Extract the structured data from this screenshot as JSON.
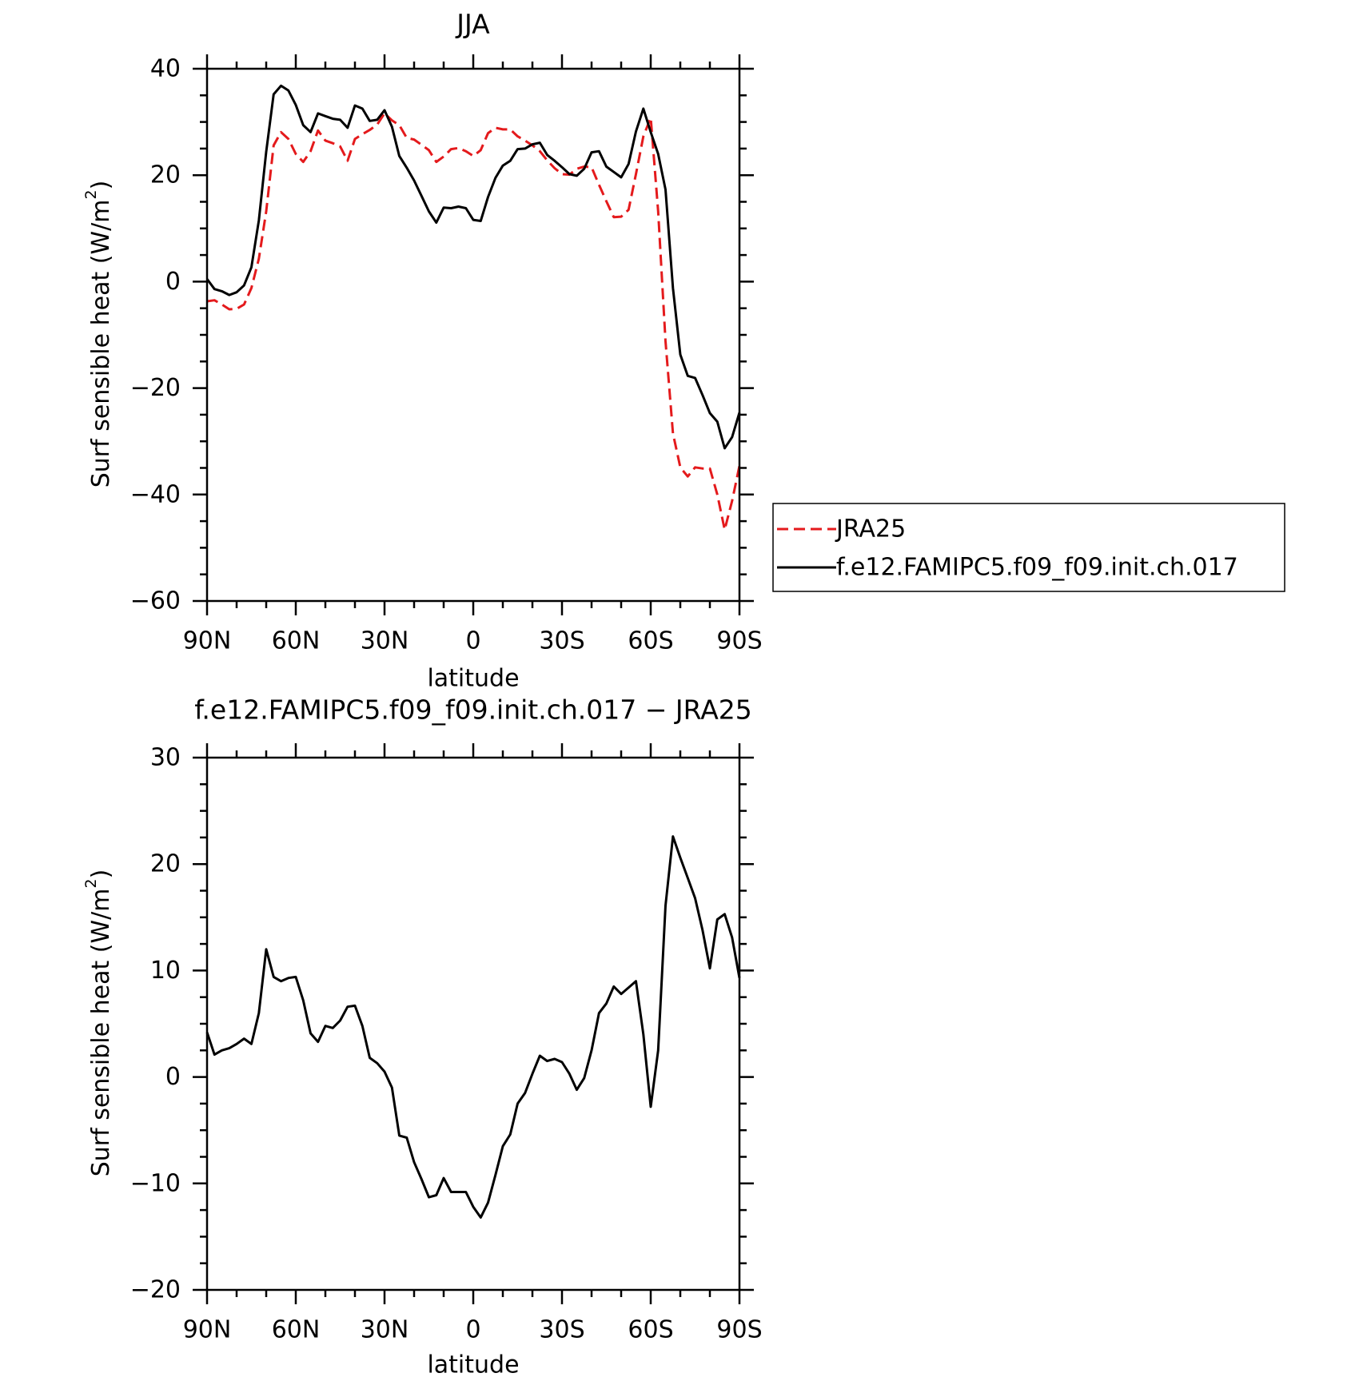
{
  "chart_data": [
    {
      "type": "line",
      "title": "JJA",
      "xlabel": "latitude",
      "ylabel": "Surf sensible heat (W/m",
      "ylabel_sup": "2",
      "ylabel_tail": ")",
      "xlim": [
        90,
        -90
      ],
      "ylim": [
        -60,
        40
      ],
      "xticks": [
        {
          "value": 90,
          "label": "90N"
        },
        {
          "value": 60,
          "label": "60N"
        },
        {
          "value": 30,
          "label": "30N"
        },
        {
          "value": 0,
          "label": "0"
        },
        {
          "value": -30,
          "label": "30S"
        },
        {
          "value": -60,
          "label": "60S"
        },
        {
          "value": -90,
          "label": "90S"
        }
      ],
      "yticks": [
        {
          "value": 40,
          "label": "40"
        },
        {
          "value": 20,
          "label": "20"
        },
        {
          "value": 0,
          "label": "0"
        },
        {
          "value": -20,
          "label": "−20"
        },
        {
          "value": -40,
          "label": "−40"
        },
        {
          "value": -60,
          "label": "−60"
        }
      ],
      "legend_position": "right",
      "series": [
        {
          "name": "JRA25",
          "color": "#e41a1c",
          "dash": true,
          "x": [
            90,
            87.5,
            85,
            82.5,
            80,
            77.5,
            75,
            72.5,
            70,
            67.5,
            65,
            62.5,
            60,
            57.5,
            55,
            52.5,
            50,
            47.5,
            45,
            42.5,
            40,
            37.5,
            35,
            32.5,
            30,
            27.5,
            25,
            22.5,
            20,
            17.5,
            15,
            12.5,
            10,
            7.5,
            5,
            2.5,
            0,
            -2.5,
            -5,
            -7.5,
            -10,
            -12.5,
            -15,
            -17.5,
            -20,
            -22.5,
            -25,
            -27.5,
            -30,
            -32.5,
            -35,
            -37.5,
            -40,
            -42.5,
            -45,
            -47.5,
            -50,
            -52.5,
            -55,
            -57.5,
            -60,
            -62.5,
            -65,
            -67.5,
            -70,
            -72.5,
            -75,
            -77.5,
            -80,
            -82.5,
            -85,
            -87.5,
            -90
          ],
          "values": [
            -3.7,
            -3.5,
            -4.3,
            -5.2,
            -5.1,
            -4.3,
            -1.2,
            4.3,
            13.2,
            25.6,
            28.1,
            26.8,
            24.0,
            22.5,
            24.5,
            28.4,
            26.5,
            26.0,
            25.4,
            22.7,
            26.8,
            27.7,
            28.5,
            29.5,
            31.6,
            30.3,
            29.4,
            27.0,
            26.7,
            25.7,
            24.7,
            22.5,
            23.5,
            24.9,
            25.1,
            24.5,
            23.6,
            24.7,
            27.9,
            28.9,
            28.6,
            28.6,
            27.3,
            26.5,
            25.6,
            24.5,
            22.8,
            21.3,
            20.2,
            20.1,
            21.2,
            21.6,
            21.5,
            18.2,
            15.1,
            12.1,
            12.2,
            13.5,
            20.2,
            27.3,
            30.8,
            13.2,
            -11.2,
            -28.5,
            -34.9,
            -36.6,
            -34.9,
            -35.1,
            -35.1,
            -40.0,
            -46.6,
            -41.2,
            -34.6
          ]
        },
        {
          "name": "f.e12.FAMIPC5.f09_f09.init.ch.017",
          "color": "#000000",
          "dash": false,
          "x": [
            90,
            87.5,
            85,
            82.5,
            80,
            77.5,
            75,
            72.5,
            70,
            67.5,
            65,
            62.5,
            60,
            57.5,
            55,
            52.5,
            50,
            47.5,
            45,
            42.5,
            40,
            37.5,
            35,
            32.5,
            30,
            27.5,
            25,
            22.5,
            20,
            17.5,
            15,
            12.5,
            10,
            7.5,
            5,
            2.5,
            0,
            -2.5,
            -5,
            -7.5,
            -10,
            -12.5,
            -15,
            -17.5,
            -20,
            -22.5,
            -25,
            -27.5,
            -30,
            -32.5,
            -35,
            -37.5,
            -40,
            -42.5,
            -45,
            -47.5,
            -50,
            -52.5,
            -55,
            -57.5,
            -60,
            -62.5,
            -65,
            -67.5,
            -70,
            -72.5,
            -75,
            -77.5,
            -80,
            -82.5,
            -85,
            -87.5,
            -90
          ],
          "values": [
            0.5,
            -1.4,
            -1.8,
            -2.5,
            -2.0,
            -0.7,
            2.7,
            11.5,
            24.4,
            35.2,
            36.8,
            35.9,
            33.2,
            29.4,
            28.1,
            31.6,
            31.1,
            30.6,
            30.4,
            28.9,
            33.1,
            32.5,
            30.2,
            30.4,
            32.2,
            29.1,
            23.6,
            21.4,
            19.0,
            16.1,
            13.2,
            11.1,
            13.9,
            13.8,
            14.1,
            13.8,
            11.6,
            11.4,
            15.9,
            19.5,
            21.8,
            22.7,
            24.9,
            25.0,
            25.8,
            26.1,
            23.8,
            22.7,
            21.5,
            20.2,
            19.9,
            21.2,
            24.3,
            24.5,
            21.6,
            20.6,
            19.6,
            22.1,
            28.2,
            32.5,
            28.1,
            24.0,
            17.3,
            -1.2,
            -13.7,
            -17.7,
            -18.1,
            -21.3,
            -24.7,
            -26.3,
            -31.3,
            -29.2,
            -24.6
          ]
        }
      ]
    },
    {
      "type": "line",
      "title": "f.e12.FAMIPC5.f09_f09.init.ch.017 − JRA25",
      "xlabel": "latitude",
      "ylabel": "Surf sensible heat (W/m",
      "ylabel_sup": "2",
      "ylabel_tail": ")",
      "xlim": [
        90,
        -90
      ],
      "ylim": [
        -20,
        30
      ],
      "xticks": [
        {
          "value": 90,
          "label": "90N"
        },
        {
          "value": 60,
          "label": "60N"
        },
        {
          "value": 30,
          "label": "30N"
        },
        {
          "value": 0,
          "label": "0"
        },
        {
          "value": -30,
          "label": "30S"
        },
        {
          "value": -60,
          "label": "60S"
        },
        {
          "value": -90,
          "label": "90S"
        }
      ],
      "yticks": [
        {
          "value": 30,
          "label": "30"
        },
        {
          "value": 20,
          "label": "20"
        },
        {
          "value": 10,
          "label": "10"
        },
        {
          "value": 0,
          "label": "0"
        },
        {
          "value": -10,
          "label": "−10"
        },
        {
          "value": -20,
          "label": "−20"
        }
      ],
      "series": [
        {
          "color": "#000000",
          "dash": false,
          "x": [
            90,
            87.5,
            85,
            82.5,
            80,
            77.5,
            75,
            72.5,
            70,
            67.5,
            65,
            62.5,
            60,
            57.5,
            55,
            52.5,
            50,
            47.5,
            45,
            42.5,
            40,
            37.5,
            35,
            32.5,
            30,
            27.5,
            25,
            22.5,
            20,
            17.5,
            15,
            12.5,
            10,
            7.5,
            5,
            2.5,
            0,
            -2.5,
            -5,
            -7.5,
            -10,
            -12.5,
            -15,
            -17.5,
            -20,
            -22.5,
            -25,
            -27.5,
            -30,
            -32.5,
            -35,
            -37.5,
            -40,
            -42.5,
            -45,
            -47.5,
            -50,
            -52.5,
            -55,
            -57.5,
            -60,
            -62.5,
            -65,
            -67.5,
            -70,
            -72.5,
            -75,
            -77.5,
            -80,
            -82.5,
            -85,
            -87.5,
            -90
          ],
          "values": [
            4.2,
            2.1,
            2.5,
            2.7,
            3.1,
            3.6,
            3.1,
            6.0,
            12.0,
            9.4,
            9.0,
            9.3,
            9.4,
            7.2,
            4.1,
            3.3,
            4.8,
            4.6,
            5.3,
            6.6,
            6.7,
            4.8,
            1.8,
            1.3,
            0.5,
            -1.0,
            -5.5,
            -5.7,
            -8.0,
            -9.6,
            -11.3,
            -11.1,
            -9.5,
            -10.8,
            -10.8,
            -10.8,
            -12.2,
            -13.2,
            -11.8,
            -9.2,
            -6.5,
            -5.4,
            -2.5,
            -1.5,
            0.3,
            2.0,
            1.5,
            1.7,
            1.4,
            0.3,
            -1.2,
            -0.1,
            2.5,
            6.0,
            6.9,
            8.5,
            7.8,
            8.4,
            9.0,
            4.0,
            -2.8,
            2.5,
            16.1,
            22.6,
            20.6,
            18.7,
            16.8,
            13.8,
            10.2,
            14.8,
            15.3,
            13.1,
            9.3
          ]
        }
      ]
    }
  ]
}
